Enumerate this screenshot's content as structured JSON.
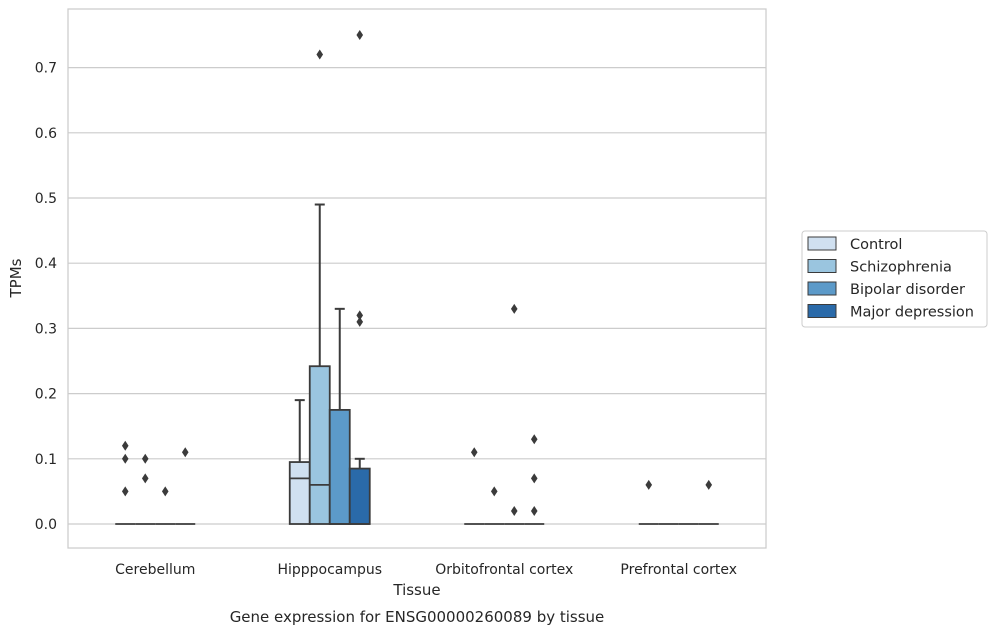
{
  "chart_data": {
    "type": "box",
    "xlabel": "Tissue",
    "ylabel": "TPMs",
    "caption": "Gene expression for ENSG00000260089 by tissue",
    "ylim": [
      -0.037,
      0.79
    ],
    "yticks": [
      0.0,
      0.1,
      0.2,
      0.3,
      0.4,
      0.5,
      0.6,
      0.7
    ],
    "ytick_labels": [
      "0.0",
      "0.1",
      "0.2",
      "0.3",
      "0.4",
      "0.5",
      "0.6",
      "0.7"
    ],
    "grid": true,
    "legend_position": "right",
    "categories": [
      "Cerebellum",
      "Hipppocampus",
      "Orbitofrontal cortex",
      "Prefrontal cortex"
    ],
    "series": [
      {
        "name": "Control",
        "color": "#d0e0f0",
        "boxes": [
          {
            "q1": 0,
            "median": 0,
            "q3": 0,
            "whisker_low": 0,
            "whisker_high": 0,
            "outliers": [
              0.12,
              0.1,
              0.05
            ]
          },
          {
            "q1": 0,
            "median": 0.07,
            "q3": 0.095,
            "whisker_low": 0,
            "whisker_high": 0.19,
            "outliers": []
          },
          {
            "q1": 0,
            "median": 0,
            "q3": 0,
            "whisker_low": 0,
            "whisker_high": 0,
            "outliers": [
              0.11
            ]
          },
          {
            "q1": 0,
            "median": 0,
            "q3": 0,
            "whisker_low": 0,
            "whisker_high": 0,
            "outliers": [
              0.06
            ]
          }
        ]
      },
      {
        "name": "Schizophrenia",
        "color": "#9ac5df",
        "boxes": [
          {
            "q1": 0,
            "median": 0,
            "q3": 0,
            "whisker_low": 0,
            "whisker_high": 0,
            "outliers": [
              0.1,
              0.07
            ]
          },
          {
            "q1": 0,
            "median": 0.06,
            "q3": 0.242,
            "whisker_low": 0,
            "whisker_high": 0.49,
            "outliers": [
              0.72
            ]
          },
          {
            "q1": 0,
            "median": 0,
            "q3": 0,
            "whisker_low": 0,
            "whisker_high": 0,
            "outliers": [
              0.05
            ]
          },
          {
            "q1": 0,
            "median": 0,
            "q3": 0,
            "whisker_low": 0,
            "whisker_high": 0,
            "outliers": []
          }
        ]
      },
      {
        "name": "Bipolar disorder",
        "color": "#5c9ac9",
        "boxes": [
          {
            "q1": 0,
            "median": 0,
            "q3": 0,
            "whisker_low": 0,
            "whisker_high": 0,
            "outliers": [
              0.05
            ]
          },
          {
            "q1": 0,
            "median": 0,
            "q3": 0.175,
            "whisker_low": 0,
            "whisker_high": 0.33,
            "outliers": []
          },
          {
            "q1": 0,
            "median": 0,
            "q3": 0,
            "whisker_low": 0,
            "whisker_high": 0,
            "outliers": [
              0.33,
              0.02
            ]
          },
          {
            "q1": 0,
            "median": 0,
            "q3": 0,
            "whisker_low": 0,
            "whisker_high": 0,
            "outliers": []
          }
        ]
      },
      {
        "name": "Major depression",
        "color": "#2a6aa9",
        "boxes": [
          {
            "q1": 0,
            "median": 0,
            "q3": 0,
            "whisker_low": 0,
            "whisker_high": 0,
            "outliers": [
              0.11
            ]
          },
          {
            "q1": 0,
            "median": 0,
            "q3": 0.085,
            "whisker_low": 0,
            "whisker_high": 0.1,
            "outliers": [
              0.75,
              0.32,
              0.31
            ]
          },
          {
            "q1": 0,
            "median": 0,
            "q3": 0,
            "whisker_low": 0,
            "whisker_high": 0,
            "outliers": [
              0.13,
              0.07,
              0.02
            ]
          },
          {
            "q1": 0,
            "median": 0,
            "q3": 0,
            "whisker_low": 0,
            "whisker_high": 0,
            "outliers": [
              0.06
            ]
          }
        ]
      }
    ]
  }
}
